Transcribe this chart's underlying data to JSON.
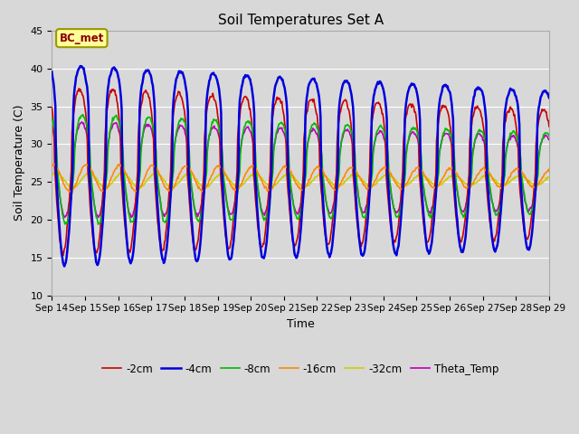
{
  "title": "Soil Temperatures Set A",
  "xlabel": "Time",
  "ylabel": "Soil Temperature (C)",
  "ylim": [
    10,
    45
  ],
  "background_color": "#d8d8d8",
  "plot_bg_color": "#d8d8d8",
  "grid_color": "white",
  "series": [
    {
      "label": "-2cm",
      "color": "#cc0000",
      "lw": 1.2,
      "zorder": 3
    },
    {
      "label": "-4cm",
      "color": "#0000dd",
      "lw": 1.8,
      "zorder": 4
    },
    {
      "label": "-8cm",
      "color": "#00bb00",
      "lw": 1.2,
      "zorder": 3
    },
    {
      "label": "-16cm",
      "color": "#ff8800",
      "lw": 1.2,
      "zorder": 3
    },
    {
      "label": "-32cm",
      "color": "#cccc00",
      "lw": 1.2,
      "zorder": 2
    },
    {
      "label": "Theta_Temp",
      "color": "#bb00bb",
      "lw": 1.2,
      "zorder": 2
    }
  ],
  "annotation_text": "BC_met",
  "annotation_color": "#8B0000",
  "annotation_bg": "#ffff99",
  "annotation_border": "#999900",
  "legend_ncol": 6
}
